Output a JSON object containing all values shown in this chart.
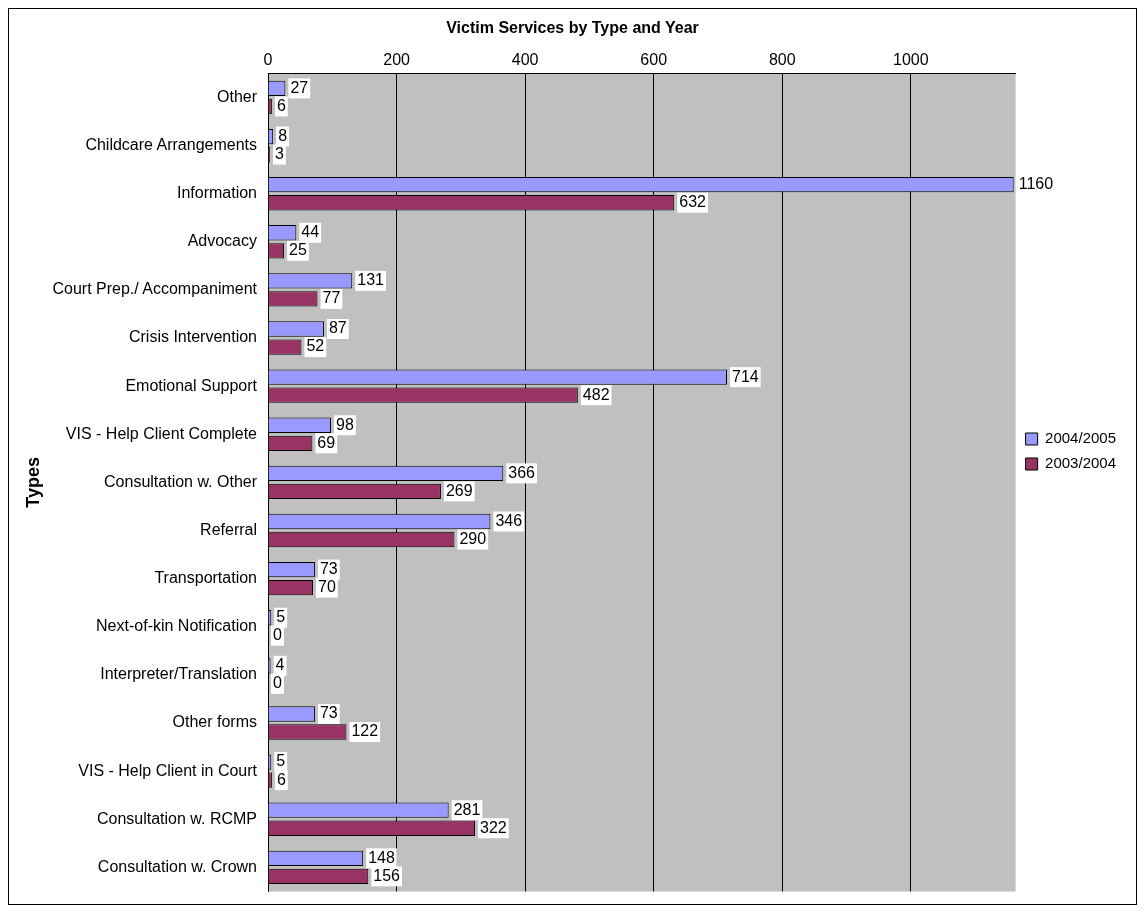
{
  "chart_data": {
    "type": "bar",
    "orientation": "horizontal",
    "title": "Victim Services by Type and Year",
    "ylabel": "Types",
    "categories": [
      "Other",
      "Childcare Arrangements",
      "Information",
      "Advocacy",
      "Court Prep./ Accompaniment",
      "Crisis Intervention",
      "Emotional Support",
      "VIS - Help Client Complete",
      "Consultation w. Other",
      "Referral",
      "Transportation",
      "Next-of-kin Notification",
      "Interpreter/Translation",
      "Other forms",
      "VIS - Help Client in Court",
      "Consultation w. RCMP",
      "Consultation w. Crown"
    ],
    "series": [
      {
        "name": "2004/2005",
        "color": "#9999ff",
        "values": [
          27,
          8,
          1160,
          44,
          131,
          87,
          714,
          98,
          366,
          346,
          73,
          5,
          4,
          73,
          5,
          281,
          148
        ]
      },
      {
        "name": "2003/2004",
        "color": "#993366",
        "values": [
          6,
          3,
          632,
          25,
          77,
          52,
          482,
          69,
          269,
          290,
          70,
          0,
          0,
          122,
          6,
          322,
          156
        ]
      }
    ],
    "xlim": [
      0,
      1163
    ],
    "xticks": [
      0,
      200,
      400,
      600,
      800,
      1000
    ],
    "grid": "x",
    "legend": "right",
    "data_labels": true
  }
}
